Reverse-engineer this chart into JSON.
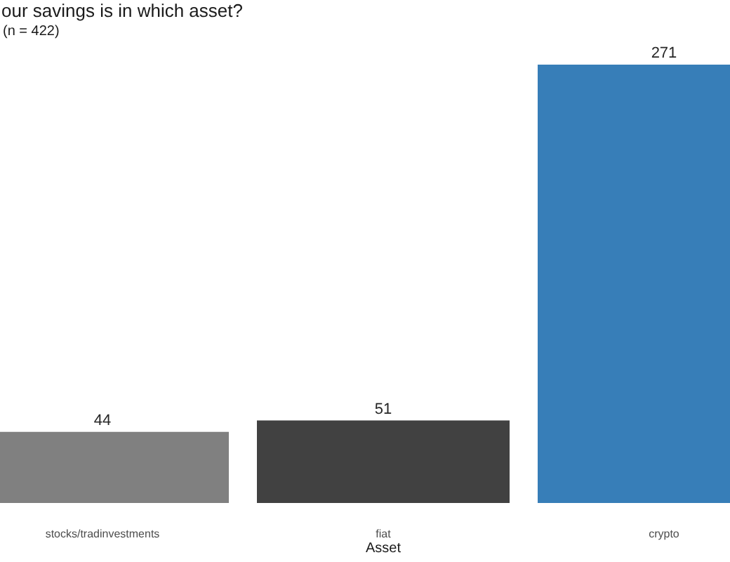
{
  "chart_data": {
    "type": "bar",
    "title": "our savings is in which asset?",
    "subtitle": "(n = 422)",
    "xlabel": "Asset",
    "categories": [
      "stocks/tradinvestments",
      "fiat",
      "crypto"
    ],
    "values": [
      44,
      51,
      271
    ],
    "colors": [
      "#808080",
      "#414141",
      "#377eb8"
    ],
    "data_labels": true
  }
}
